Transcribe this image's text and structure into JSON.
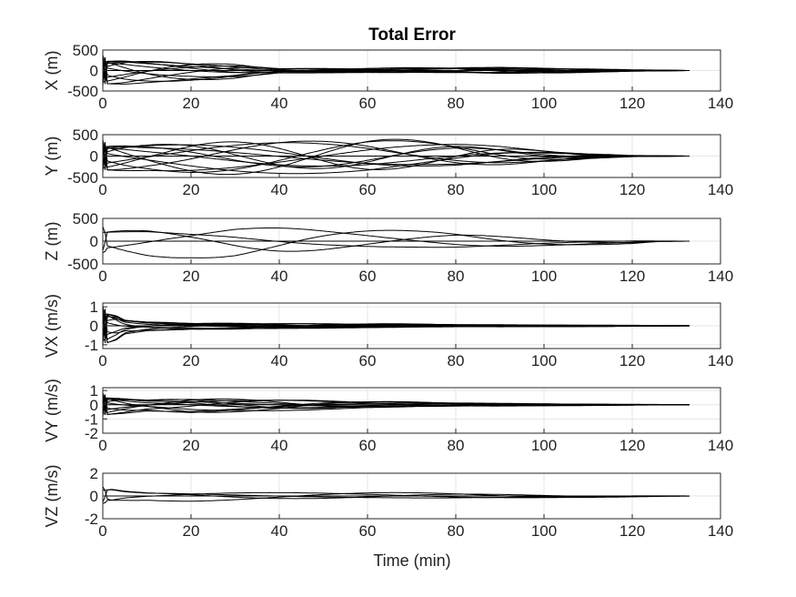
{
  "chart_data": {
    "type": "line",
    "title": "Total Error",
    "xlabel": "Time (min)",
    "xlim": [
      0,
      140
    ],
    "xticks": [
      0,
      20,
      40,
      60,
      80,
      100,
      120,
      140
    ],
    "grid": true,
    "subplots": [
      {
        "ylabel": "X (m)",
        "ylim": [
          -500,
          500
        ],
        "yticks": [
          -500,
          0,
          500
        ],
        "yticklabels": [
          "-500",
          "0",
          "500"
        ],
        "series_envelope": {
          "t": [
            0,
            5,
            10,
            20,
            30,
            40,
            60,
            80,
            90,
            100,
            110,
            120,
            133
          ],
          "a": [
            400,
            390,
            340,
            260,
            190,
            60,
            60,
            80,
            90,
            70,
            45,
            20,
            0
          ]
        },
        "num_traces": 12
      },
      {
        "ylabel": "Y (m)",
        "ylim": [
          -500,
          500
        ],
        "yticks": [
          -500,
          0,
          500
        ],
        "yticklabels": [
          "-500",
          "0",
          "500"
        ],
        "series_envelope": {
          "t": [
            0,
            5,
            10,
            20,
            30,
            40,
            60,
            80,
            90,
            100,
            110,
            120,
            133
          ],
          "a": [
            400,
            400,
            390,
            420,
            430,
            430,
            420,
            340,
            260,
            150,
            60,
            15,
            0
          ]
        },
        "num_traces": 12
      },
      {
        "ylabel": "Z (m)",
        "ylim": [
          -500,
          500
        ],
        "yticks": [
          -500,
          0,
          500
        ],
        "yticklabels": [
          "-500",
          "0",
          "500"
        ],
        "series_envelope": {
          "t": [
            0,
            10,
            20,
            30,
            40,
            55,
            70,
            80,
            100,
            110,
            120,
            126,
            133
          ],
          "a": [
            350,
            420,
            400,
            440,
            400,
            300,
            250,
            240,
            130,
            90,
            60,
            10,
            0
          ]
        },
        "num_traces": 4
      },
      {
        "ylabel": "VX (m/s)",
        "ylim": [
          -1.2,
          1.2
        ],
        "yticks": [
          -1,
          0,
          1
        ],
        "yticklabels": [
          "-1",
          "0",
          "1"
        ],
        "series_envelope": {
          "t": [
            0,
            1,
            3,
            5,
            10,
            20,
            40,
            60,
            80,
            100,
            120,
            133
          ],
          "a": [
            1.1,
            1.1,
            0.9,
            0.5,
            0.3,
            0.2,
            0.15,
            0.12,
            0.08,
            0.05,
            0.03,
            0.01
          ]
        },
        "num_traces": 12
      },
      {
        "ylabel": "VY (m/s)",
        "ylim": [
          -2,
          1.2
        ],
        "yticks": [
          -2,
          -1,
          0,
          1
        ],
        "yticklabels": [
          "-2",
          "-1",
          "0",
          "1"
        ],
        "series_envelope": {
          "t": [
            0,
            2,
            5,
            10,
            20,
            30,
            45,
            60,
            80,
            100,
            120,
            133
          ],
          "a": [
            0.9,
            0.8,
            0.7,
            0.5,
            0.6,
            0.5,
            0.4,
            0.25,
            0.15,
            0.08,
            0.03,
            0.01
          ]
        },
        "num_traces": 12
      },
      {
        "ylabel": "VZ (m/s)",
        "ylim": [
          -2,
          2
        ],
        "yticks": [
          -2,
          0,
          2
        ],
        "yticklabels": [
          "-2",
          "0",
          "2"
        ],
        "series_envelope": {
          "t": [
            0,
            2,
            5,
            10,
            20,
            30,
            40,
            54,
            78,
            100,
            126,
            133
          ],
          "a": [
            0.9,
            1.0,
            0.7,
            0.5,
            0.5,
            0.45,
            0.4,
            0.35,
            0.3,
            0.2,
            0.05,
            0.01
          ]
        },
        "num_traces": 4
      }
    ]
  }
}
